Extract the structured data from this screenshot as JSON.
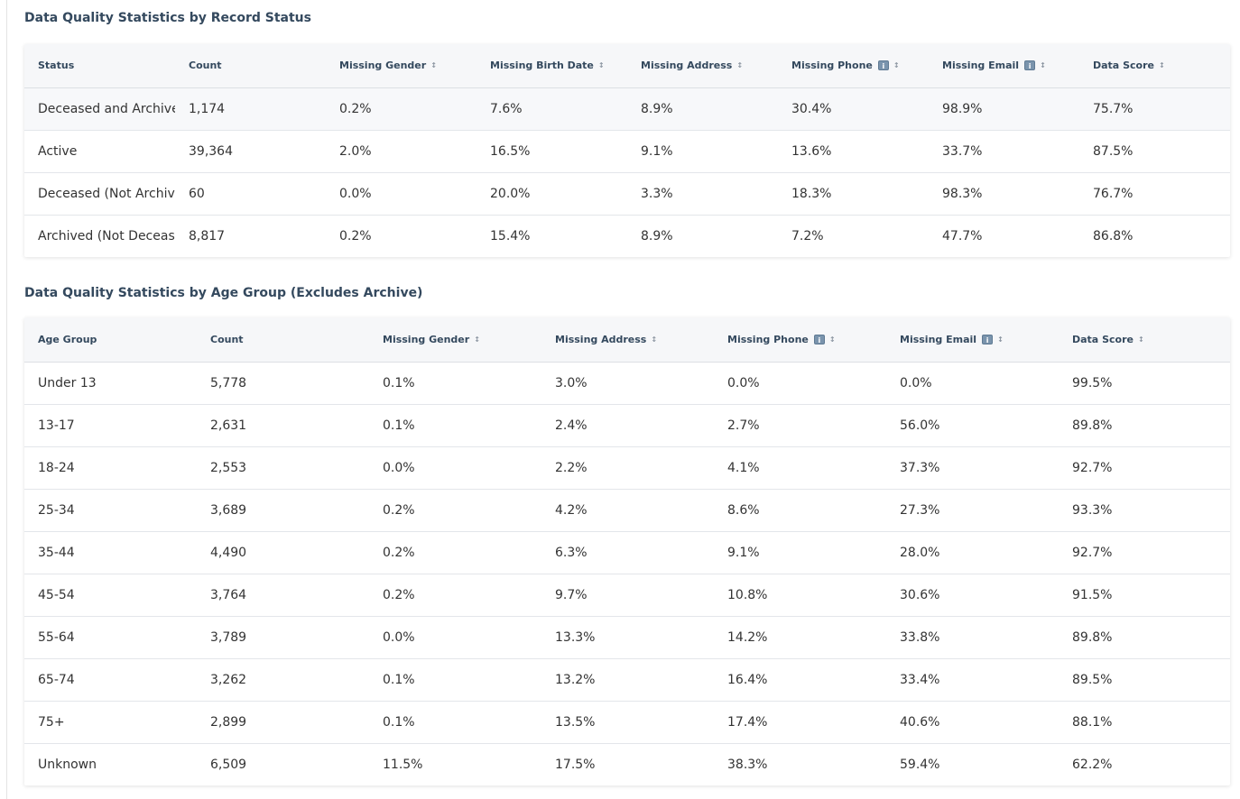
{
  "status_section": {
    "title": "Data Quality Statistics by Record Status",
    "headers": {
      "status": "Status",
      "count": "Count",
      "missing_gender": "Missing Gender",
      "missing_birth_date": "Missing Birth Date",
      "missing_address": "Missing Address",
      "missing_phone": "Missing Phone",
      "missing_email": "Missing Email",
      "data_score": "Data Score"
    },
    "rows": [
      [
        "Deceased and Archived",
        "1,174",
        "0.2%",
        "7.6%",
        "8.9%",
        "30.4%",
        "98.9%",
        "75.7%"
      ],
      [
        "Active",
        "39,364",
        "2.0%",
        "16.5%",
        "9.1%",
        "13.6%",
        "33.7%",
        "87.5%"
      ],
      [
        "Deceased (Not Archived)",
        "60",
        "0.0%",
        "20.0%",
        "3.3%",
        "18.3%",
        "98.3%",
        "76.7%"
      ],
      [
        "Archived (Not Deceased)",
        "8,817",
        "0.2%",
        "15.4%",
        "8.9%",
        "7.2%",
        "47.7%",
        "86.8%"
      ]
    ]
  },
  "age_section": {
    "title": "Data Quality Statistics by Age Group (Excludes Archive)",
    "headers": {
      "age_group": "Age Group",
      "count": "Count",
      "missing_gender": "Missing Gender",
      "missing_address": "Missing Address",
      "missing_phone": "Missing Phone",
      "missing_email": "Missing Email",
      "data_score": "Data Score"
    },
    "rows": [
      [
        "Under 13",
        "5,778",
        "0.1%",
        "3.0%",
        "0.0%",
        "0.0%",
        "99.5%"
      ],
      [
        "13-17",
        "2,631",
        "0.1%",
        "2.4%",
        "2.7%",
        "56.0%",
        "89.8%"
      ],
      [
        "18-24",
        "2,553",
        "0.0%",
        "2.2%",
        "4.1%",
        "37.3%",
        "92.7%"
      ],
      [
        "25-34",
        "3,689",
        "0.2%",
        "4.2%",
        "8.6%",
        "27.3%",
        "93.3%"
      ],
      [
        "35-44",
        "4,490",
        "0.2%",
        "6.3%",
        "9.1%",
        "28.0%",
        "92.7%"
      ],
      [
        "45-54",
        "3,764",
        "0.2%",
        "9.7%",
        "10.8%",
        "30.6%",
        "91.5%"
      ],
      [
        "55-64",
        "3,789",
        "0.0%",
        "13.3%",
        "14.2%",
        "33.8%",
        "89.8%"
      ],
      [
        "65-74",
        "3,262",
        "0.1%",
        "13.2%",
        "16.4%",
        "33.4%",
        "89.5%"
      ],
      [
        "75+",
        "2,899",
        "0.1%",
        "13.5%",
        "17.4%",
        "40.6%",
        "88.1%"
      ],
      [
        "Unknown",
        "6,509",
        "11.5%",
        "17.5%",
        "38.3%",
        "59.4%",
        "62.2%"
      ]
    ]
  },
  "icons": {
    "sort": "sort-arrows-icon",
    "info": "info-icon"
  },
  "glyphs": {
    "sort": "↕",
    "info": "i"
  }
}
